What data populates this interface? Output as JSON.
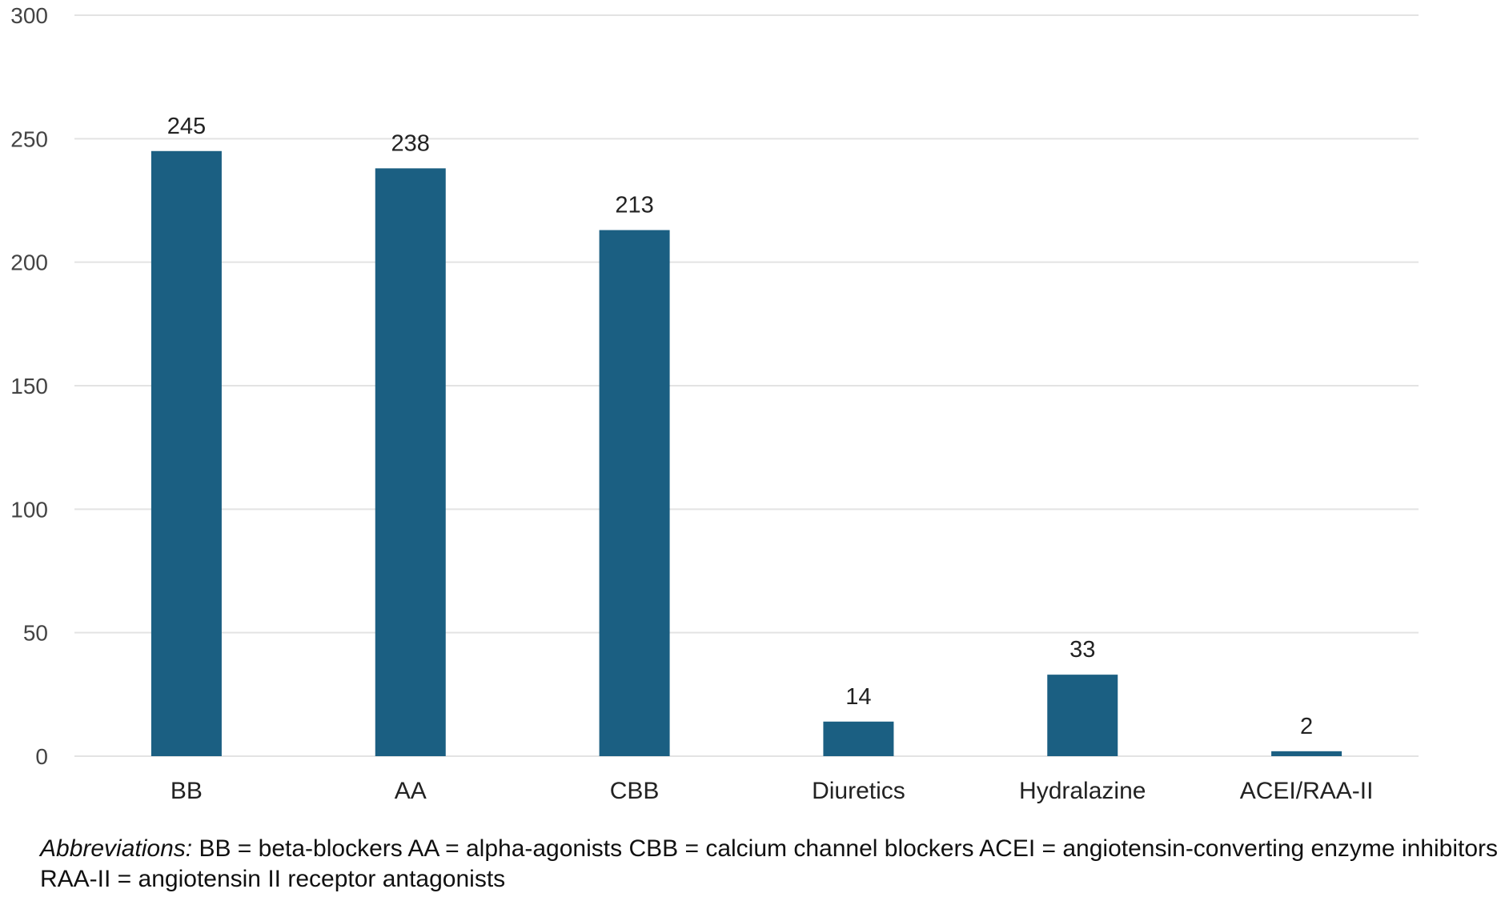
{
  "chart_data": {
    "type": "bar",
    "categories": [
      "BB",
      "AA",
      "CBB",
      "Diuretics",
      "Hydralazine",
      "ACEI/RAA-II"
    ],
    "values": [
      245,
      238,
      213,
      14,
      33,
      2
    ],
    "data_labels": [
      "245",
      "238",
      "213",
      "14",
      "33",
      "2"
    ],
    "title": "",
    "xlabel": "",
    "ylabel": "",
    "ylim": [
      0,
      300
    ],
    "yticks": [
      0,
      50,
      100,
      150,
      200,
      250,
      300
    ],
    "grid": true,
    "legend": "none",
    "bar_color": "#1b5f82",
    "grid_color": "#e3e3e3"
  },
  "footnote": {
    "lead": "Abbreviations:",
    "text": " BB = beta-blockers AA = alpha-agonists CBB = calcium channel blockers ACEI = angiotensin-converting enzyme inhibitors RAA-II = angiotensin II receptor antagonists"
  }
}
